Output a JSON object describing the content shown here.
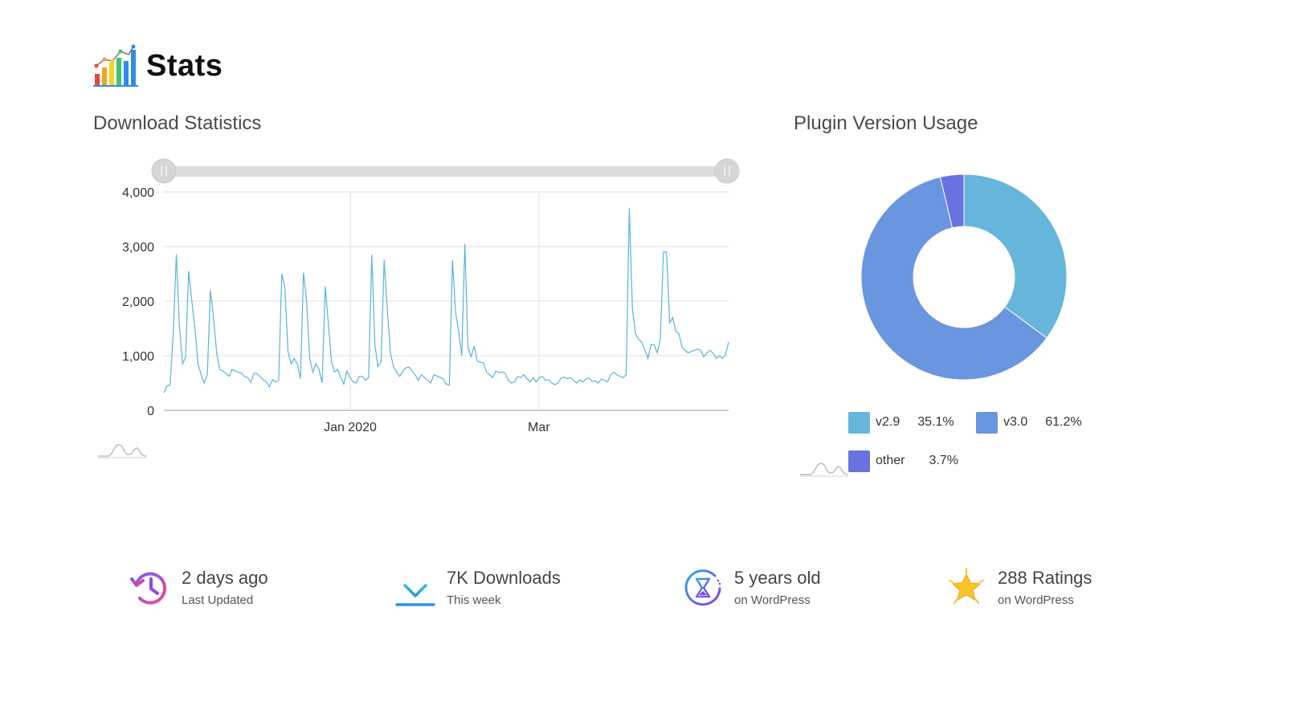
{
  "header": {
    "title": "Stats"
  },
  "download_stats": {
    "title": "Download Statistics"
  },
  "plugin_usage": {
    "title": "Plugin Version Usage"
  },
  "chart_data": [
    {
      "type": "line",
      "y_ticks": [
        "0",
        "1,000",
        "2,000",
        "3,000",
        "4,000"
      ],
      "ylim": [
        0,
        4000
      ],
      "x_ticks": [
        "Jan 2020",
        "Mar"
      ],
      "grid": true,
      "color": "#5ab4d8",
      "series": [
        {
          "values": [
            320,
            450,
            460,
            1400,
            2850,
            1550,
            850,
            970,
            2550,
            2000,
            1500,
            850,
            650,
            500,
            650,
            2200,
            1700,
            1050,
            750,
            720,
            680,
            620,
            750,
            720,
            700,
            680,
            620,
            600,
            510,
            680,
            670,
            620,
            560,
            520,
            430,
            560,
            520,
            550,
            2500,
            2250,
            1080,
            850,
            950,
            850,
            580,
            2520,
            2000,
            950,
            700,
            850,
            750,
            500,
            2270,
            1600,
            900,
            700,
            750,
            600,
            480,
            720,
            600,
            520,
            500,
            620,
            620,
            550,
            600,
            2850,
            1200,
            800,
            900,
            2750,
            1850,
            1050,
            800,
            700,
            620,
            720,
            780,
            790,
            720,
            650,
            550,
            650,
            600,
            550,
            500,
            650,
            630,
            600,
            580,
            480,
            460,
            2750,
            1800,
            1450,
            1000,
            3050,
            1150,
            980,
            1180,
            900,
            880,
            870,
            700,
            650,
            600,
            720,
            690,
            700,
            680,
            550,
            500,
            520,
            620,
            600,
            650,
            580,
            520,
            600,
            520,
            600,
            620,
            550,
            560,
            500,
            470,
            500,
            590,
            610,
            580,
            600,
            550,
            500,
            560,
            520,
            570,
            590,
            530,
            540,
            500,
            570,
            550,
            520,
            650,
            700,
            650,
            620,
            600,
            650,
            3700,
            1850,
            1400,
            1300,
            1250,
            1100,
            950,
            1200,
            1200,
            1050,
            1300,
            2900,
            2900,
            1600,
            1700,
            1450,
            1400,
            1150,
            1100,
            1050,
            1080,
            1100,
            1120,
            1100,
            980,
            1050,
            1100,
            1050,
            950,
            1000,
            950,
            1010,
            1250
          ]
        }
      ]
    },
    {
      "type": "pie",
      "series": [
        {
          "name": "v2.9",
          "value": 35.1,
          "label": "35.1%",
          "color": "#66b6db"
        },
        {
          "name": "v3.0",
          "value": 61.2,
          "label": "61.2%",
          "color": "#6a95df"
        },
        {
          "name": "other",
          "value": 3.7,
          "label": "3.7%",
          "color": "#6a71e0"
        }
      ]
    }
  ],
  "stats": [
    {
      "value": "2 days ago",
      "label": "Last Updated",
      "icon": "history-icon"
    },
    {
      "value": "7K Downloads",
      "label": "This week",
      "icon": "download-icon"
    },
    {
      "value": "5 years old",
      "label": "on WordPress",
      "icon": "hourglass-icon"
    },
    {
      "value": "288 Ratings",
      "label": "on WordPress",
      "icon": "star-icon"
    }
  ]
}
